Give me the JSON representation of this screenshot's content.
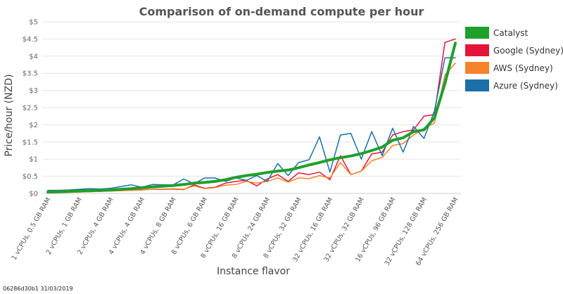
{
  "chart_data": {
    "type": "line",
    "title": "Comparison of on-demand compute per hour",
    "xlabel": "Instance flavor",
    "ylabel": "Price/hour (NZD)",
    "ylim": [
      0,
      5
    ],
    "yticks": [
      "$0",
      "$0.5",
      "$1",
      "$1.5",
      "$2",
      "$2.5",
      "$3",
      "$3.5",
      "$4",
      "$4.5",
      "$5"
    ],
    "grid": true,
    "legend_position": "right",
    "x_tick_labels": [
      "1 vCPUs, 0.5 GB RAM",
      "2 vCPUs, 1 GB RAM",
      "2 vCPUs, 4 GB RAM",
      "4 vCPUs, 4 GB RAM",
      "4 vCPUs, 8 GB RAM",
      "8 vCPUs, 6 GB RAM",
      "8 vCPUs, 16 GB RAM",
      "8 vCPUs, 24 GB RAM",
      "8 vCPUs, 32 GB RAM",
      "32 vCPUs, 16 GB RAM",
      "32 vCPUs, 32 GB RAM",
      "16 vCPUs, 96 GB RAM",
      "32 vCPUs, 128 GB RAM",
      "64 vCPUs, 256 GB RAM"
    ],
    "tick_every": 3,
    "x": [
      1,
      2,
      3,
      4,
      5,
      6,
      7,
      8,
      9,
      10,
      11,
      12,
      13,
      14,
      15,
      16,
      17,
      18,
      19,
      20,
      21,
      22,
      23,
      24,
      25,
      26,
      27,
      28,
      29,
      30,
      31,
      32,
      33,
      34,
      35,
      36,
      37,
      38,
      39,
      40
    ],
    "series": [
      {
        "name": "Catalyst",
        "color": "#1fa02a",
        "width": 4,
        "values": [
          0.04,
          0.05,
          0.06,
          0.07,
          0.08,
          0.09,
          0.1,
          0.12,
          0.14,
          0.17,
          0.19,
          0.21,
          0.23,
          0.26,
          0.3,
          0.32,
          0.35,
          0.4,
          0.47,
          0.52,
          0.56,
          0.61,
          0.65,
          0.68,
          0.75,
          0.83,
          0.9,
          0.98,
          1.04,
          1.09,
          1.16,
          1.25,
          1.35,
          1.55,
          1.62,
          1.8,
          1.85,
          2.2,
          3.2,
          4.38
        ]
      },
      {
        "name": "Google (Sydney)",
        "color": "#e3163a",
        "width": 1.5,
        "values": [
          0.02,
          0.03,
          0.04,
          0.05,
          0.06,
          0.06,
          0.08,
          0.09,
          0.09,
          0.11,
          0.12,
          0.12,
          0.13,
          0.11,
          0.25,
          0.15,
          0.18,
          0.3,
          0.35,
          0.38,
          0.22,
          0.42,
          0.55,
          0.35,
          0.6,
          0.55,
          0.62,
          0.4,
          1.1,
          0.55,
          0.65,
          1.15,
          1.2,
          1.7,
          1.8,
          1.85,
          2.25,
          2.3,
          4.4,
          4.5
        ]
      },
      {
        "name": "AWS (Sydney)",
        "color": "#f5832a",
        "width": 1.5,
        "values": [
          0.01,
          0.02,
          0.03,
          0.04,
          0.05,
          0.06,
          0.07,
          0.08,
          0.09,
          0.1,
          0.12,
          0.13,
          0.14,
          0.12,
          0.22,
          0.14,
          0.17,
          0.24,
          0.26,
          0.35,
          0.3,
          0.35,
          0.45,
          0.33,
          0.45,
          0.43,
          0.52,
          0.45,
          0.9,
          0.55,
          0.65,
          0.95,
          1.05,
          1.4,
          1.45,
          1.7,
          1.9,
          2.05,
          3.45,
          3.8
        ]
      },
      {
        "name": "Azure (Sydney)",
        "color": "#1b6fa8",
        "width": 1.5,
        "values": [
          0.09,
          0.09,
          0.1,
          0.12,
          0.14,
          0.13,
          0.15,
          0.2,
          0.25,
          0.18,
          0.26,
          0.25,
          0.25,
          0.42,
          0.28,
          0.45,
          0.45,
          0.35,
          0.45,
          0.38,
          0.52,
          0.35,
          0.87,
          0.52,
          0.9,
          0.98,
          1.65,
          0.62,
          1.7,
          1.75,
          1.0,
          1.8,
          1.1,
          1.9,
          1.2,
          1.95,
          1.6,
          2.4,
          3.95,
          3.95
        ]
      }
    ]
  },
  "footnote": "06286d30b1 31/03/2019"
}
